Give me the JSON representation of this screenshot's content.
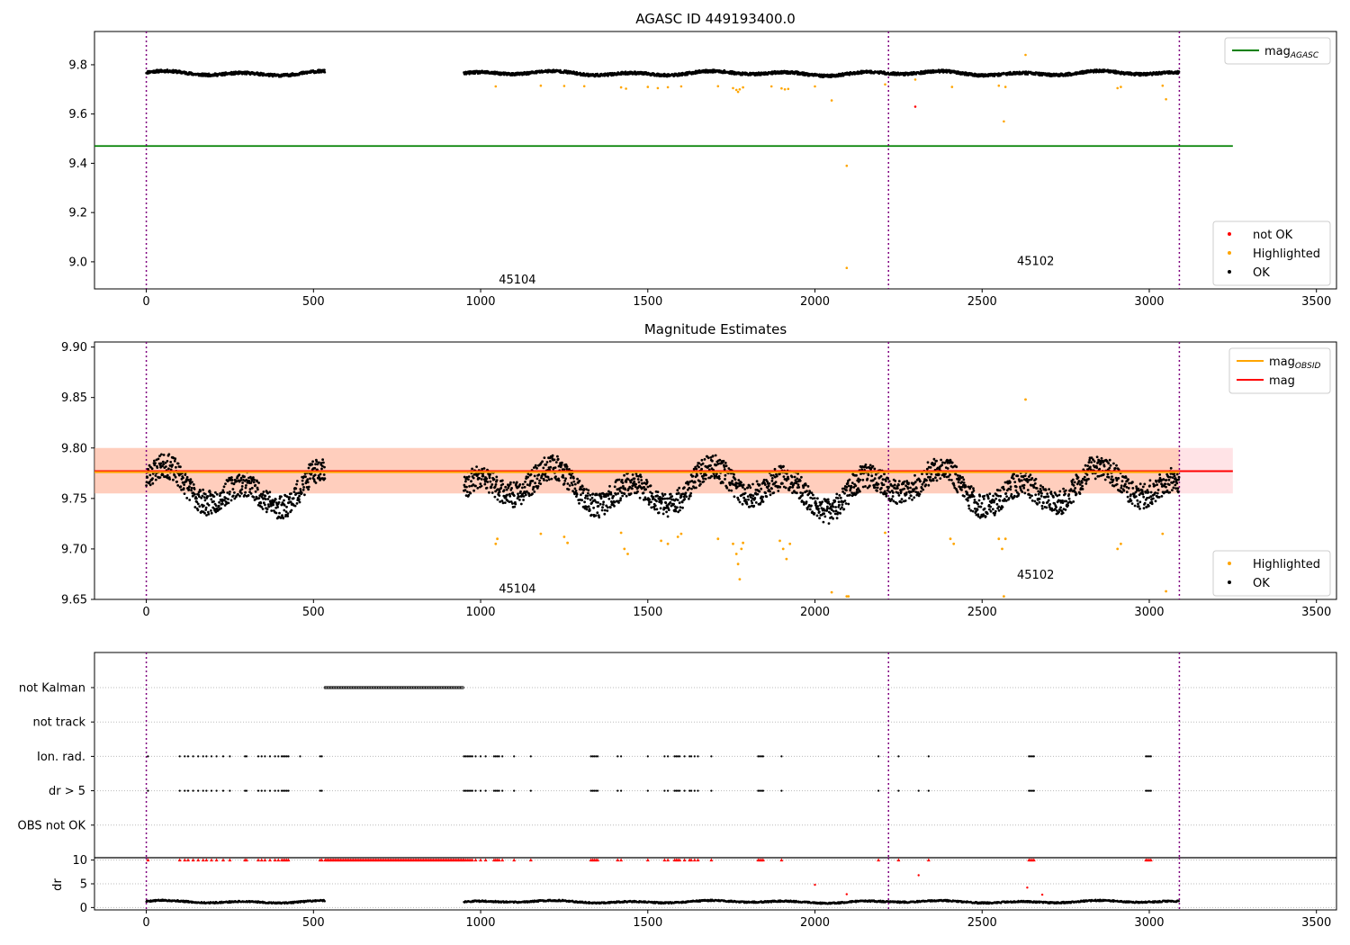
{
  "chart_data": [
    {
      "panel": "agasc",
      "type": "scatter",
      "title": "AGASC ID 449193400.0",
      "xlim": [
        -155,
        3560
      ],
      "ylim": [
        8.89,
        9.935
      ],
      "x_ticks": [
        0,
        500,
        1000,
        1500,
        2000,
        2500,
        3000,
        3500
      ],
      "y_ticks": [
        9.0,
        9.2,
        9.4,
        9.6,
        9.8
      ],
      "y_tick_labels": [
        "9.0",
        "9.2",
        "9.4",
        "9.6",
        "9.8"
      ],
      "obsid_boundaries": [
        0,
        2220,
        3090
      ],
      "obsid_labels": [
        {
          "text": "45104",
          "x": 1110,
          "y": 8.93
        },
        {
          "text": "45102",
          "x": 2660,
          "y": 9.005
        }
      ],
      "lines": [
        {
          "name": "mag",
          "subscript": "AGASC",
          "y": 9.47,
          "x_range": [
            -155,
            3250
          ],
          "color": "#008000"
        }
      ],
      "series": [
        {
          "name": "OK",
          "color": "#000000",
          "base": 9.765,
          "amp": 0.02,
          "segments": [
            [
              0,
              535
            ],
            [
              950,
              3090
            ]
          ],
          "n": 2600,
          "seed": 11
        },
        {
          "name": "Highlighted",
          "color": "#ffa500",
          "points": [
            [
              1045,
              9.712
            ],
            [
              1180,
              9.715
            ],
            [
              1250,
              9.714
            ],
            [
              1310,
              9.713
            ],
            [
              1420,
              9.708
            ],
            [
              1435,
              9.703
            ],
            [
              1500,
              9.71
            ],
            [
              1530,
              9.705
            ],
            [
              1560,
              9.709
            ],
            [
              1600,
              9.712
            ],
            [
              1710,
              9.713
            ],
            [
              1755,
              9.705
            ],
            [
              1765,
              9.698
            ],
            [
              1770,
              9.69
            ],
            [
              1775,
              9.7
            ],
            [
              1785,
              9.708
            ],
            [
              1870,
              9.712
            ],
            [
              1900,
              9.704
            ],
            [
              1910,
              9.7
            ],
            [
              1920,
              9.702
            ],
            [
              2000,
              9.712
            ],
            [
              2050,
              9.655
            ],
            [
              2095,
              9.39
            ],
            [
              2095,
              8.975
            ],
            [
              2210,
              9.72
            ],
            [
              2300,
              9.74
            ],
            [
              2410,
              9.71
            ],
            [
              2550,
              9.715
            ],
            [
              2565,
              9.57
            ],
            [
              2570,
              9.71
            ],
            [
              2630,
              9.84
            ],
            [
              2905,
              9.705
            ],
            [
              2915,
              9.71
            ],
            [
              3040,
              9.715
            ],
            [
              3050,
              9.66
            ]
          ]
        },
        {
          "name": "not OK",
          "color": "#ff0000",
          "points": [
            [
              2300,
              9.63
            ]
          ]
        }
      ],
      "legend_top": [
        {
          "label": "mag",
          "subscript": "AGASC",
          "color": "#008000"
        }
      ],
      "legend_bottom": [
        {
          "label": "not OK",
          "color": "#ff0000"
        },
        {
          "label": "Highlighted",
          "color": "#ffa500"
        },
        {
          "label": "OK",
          "color": "#000000"
        }
      ]
    },
    {
      "panel": "estimates",
      "type": "scatter",
      "title": "Magnitude Estimates",
      "xlim": [
        -155,
        3560
      ],
      "ylim": [
        9.65,
        9.905
      ],
      "x_ticks": [
        0,
        500,
        1000,
        1500,
        2000,
        2500,
        3000,
        3500
      ],
      "y_ticks": [
        9.65,
        9.7,
        9.75,
        9.8,
        9.85,
        9.9
      ],
      "y_tick_labels": [
        "9.65",
        "9.70",
        "9.75",
        "9.80",
        "9.85",
        "9.90"
      ],
      "obsid_boundaries": [
        0,
        2220,
        3090
      ],
      "obsid_labels": [
        {
          "text": "45104",
          "x": 1110,
          "y": 9.661
        },
        {
          "text": "45102",
          "x": 2660,
          "y": 9.675
        }
      ],
      "bands": [
        {
          "name": "mag band",
          "color": "#ffb0b8",
          "opacity": 0.35,
          "y0": 9.755,
          "y1": 9.8,
          "x_range": [
            -155,
            3250
          ]
        },
        {
          "name": "mag_OBSID band 45104",
          "color": "#ffa060",
          "opacity": 0.3,
          "y0": 9.755,
          "y1": 9.8,
          "x_range": [
            -155,
            2220
          ]
        },
        {
          "name": "mag_OBSID band 45102",
          "color": "#ffa060",
          "opacity": 0.3,
          "y0": 9.755,
          "y1": 9.8,
          "x_range": [
            2220,
            3090
          ]
        }
      ],
      "lines": [
        {
          "name": "mag",
          "y": 9.777,
          "x_range": [
            -155,
            3250
          ],
          "color": "#ff0000"
        },
        {
          "name": "mag",
          "subscript": "OBSID",
          "y": 9.776,
          "x_range": [
            -155,
            3090
          ],
          "color": "#ffa500"
        }
      ],
      "series": [
        {
          "name": "OK",
          "color": "#000000",
          "base": 9.76,
          "amp": 0.045,
          "segments": [
            [
              0,
              535
            ],
            [
              950,
              3090
            ]
          ],
          "n": 2600,
          "seed": 23
        },
        {
          "name": "Highlighted",
          "color": "#ffa500",
          "points": [
            [
              1045,
              9.705
            ],
            [
              1050,
              9.71
            ],
            [
              1180,
              9.715
            ],
            [
              1250,
              9.712
            ],
            [
              1260,
              9.706
            ],
            [
              1420,
              9.716
            ],
            [
              1430,
              9.7
            ],
            [
              1440,
              9.695
            ],
            [
              1540,
              9.708
            ],
            [
              1560,
              9.705
            ],
            [
              1590,
              9.712
            ],
            [
              1600,
              9.715
            ],
            [
              1710,
              9.71
            ],
            [
              1755,
              9.705
            ],
            [
              1765,
              9.695
            ],
            [
              1770,
              9.685
            ],
            [
              1775,
              9.67
            ],
            [
              1780,
              9.7
            ],
            [
              1785,
              9.706
            ],
            [
              1895,
              9.708
            ],
            [
              1905,
              9.7
            ],
            [
              1915,
              9.69
            ],
            [
              1925,
              9.705
            ],
            [
              2050,
              9.657
            ],
            [
              2095,
              9.653
            ],
            [
              2100,
              9.653
            ],
            [
              2210,
              9.716
            ],
            [
              2405,
              9.71
            ],
            [
              2415,
              9.705
            ],
            [
              2550,
              9.71
            ],
            [
              2560,
              9.7
            ],
            [
              2565,
              9.653
            ],
            [
              2570,
              9.71
            ],
            [
              2630,
              9.848
            ],
            [
              2905,
              9.7
            ],
            [
              2915,
              9.705
            ],
            [
              3040,
              9.715
            ],
            [
              3050,
              9.658
            ]
          ]
        }
      ],
      "legend_top": [
        {
          "label": "mag",
          "subscript": "OBSID",
          "color": "#ffa500"
        },
        {
          "label": "mag",
          "color": "#ff0000"
        }
      ],
      "legend_bottom": [
        {
          "label": "Highlighted",
          "color": "#ffa500"
        },
        {
          "label": "OK",
          "color": "#000000"
        }
      ]
    },
    {
      "panel": "flags",
      "type": "scatter",
      "xlim": [
        -155,
        3560
      ],
      "categories": [
        "not Kalman",
        "not track",
        "Ion. rad.",
        "dr > 5",
        "OBS not OK"
      ],
      "obsid_boundaries": [
        0,
        2220,
        3090
      ],
      "series": [
        {
          "name": "not Kalman",
          "color": "#000000",
          "ranges": [
            [
              535,
              950
            ]
          ]
        },
        {
          "name": "not track",
          "color": "#000000",
          "ranges": []
        },
        {
          "name": "Ion. rad.",
          "color": "#000000",
          "xs": [
            5,
            100,
            115,
            125,
            140,
            155,
            170,
            180,
            195,
            210,
            230,
            250,
            295,
            300,
            335,
            345,
            355,
            370,
            385,
            395,
            405,
            410,
            415,
            420,
            425,
            460,
            520,
            525,
            950,
            955,
            960,
            965,
            970,
            975,
            985,
            1000,
            1015,
            1040,
            1045,
            1050,
            1055,
            1065,
            1100,
            1150,
            1330,
            1335,
            1340,
            1345,
            1350,
            1410,
            1420,
            1500,
            1550,
            1560,
            1580,
            1585,
            1590,
            1595,
            1610,
            1625,
            1630,
            1640,
            1650,
            1690,
            1830,
            1835,
            1840,
            1845,
            1900,
            2190,
            2250,
            2340,
            2640,
            2645,
            2650,
            2655,
            2990,
            2995,
            3000,
            3005
          ]
        },
        {
          "name": "dr > 5",
          "color": "#000000",
          "xs": [
            5,
            100,
            115,
            125,
            140,
            155,
            170,
            180,
            195,
            210,
            230,
            250,
            295,
            300,
            335,
            345,
            355,
            370,
            385,
            395,
            405,
            410,
            415,
            420,
            425,
            520,
            525,
            950,
            955,
            960,
            965,
            970,
            975,
            985,
            1000,
            1015,
            1040,
            1045,
            1050,
            1055,
            1065,
            1100,
            1150,
            1330,
            1335,
            1340,
            1345,
            1350,
            1410,
            1420,
            1500,
            1550,
            1560,
            1580,
            1585,
            1590,
            1595,
            1610,
            1625,
            1630,
            1640,
            1650,
            1690,
            1830,
            1835,
            1840,
            1845,
            1900,
            2190,
            2250,
            2310,
            2340,
            2640,
            2645,
            2650,
            2655,
            2990,
            2995,
            3000,
            3005
          ]
        },
        {
          "name": "OBS not OK",
          "color": "#000000",
          "ranges": []
        }
      ]
    },
    {
      "panel": "dr",
      "type": "scatter",
      "xlim": [
        -155,
        3560
      ],
      "x_ticks": [
        0,
        500,
        1000,
        1500,
        2000,
        2500,
        3000,
        3500
      ],
      "ylim": [
        -0.5,
        10.5
      ],
      "y_ticks": [
        0,
        5,
        10
      ],
      "y_tick_labels": [
        "0",
        "5",
        "10"
      ],
      "ylabel": "dr",
      "obsid_boundaries": [
        0,
        2220,
        3090
      ],
      "series": [
        {
          "name": "dr",
          "color": "#000000",
          "base": 1.2,
          "amp": 0.6,
          "segments": [
            [
              0,
              535
            ],
            [
              950,
              3090
            ]
          ],
          "n": 1900,
          "seed": 5
        },
        {
          "name": "dr clipped",
          "color": "#ff0000",
          "clip": 10,
          "ranges": [
            [
              535,
              950
            ]
          ],
          "xs": [
            5,
            100,
            115,
            125,
            140,
            155,
            170,
            180,
            195,
            210,
            230,
            250,
            295,
            300,
            335,
            345,
            355,
            370,
            385,
            395,
            405,
            410,
            415,
            420,
            425,
            520,
            525,
            950,
            955,
            960,
            965,
            970,
            975,
            985,
            1000,
            1015,
            1040,
            1045,
            1050,
            1055,
            1065,
            1100,
            1150,
            1330,
            1335,
            1340,
            1345,
            1350,
            1410,
            1420,
            1500,
            1550,
            1560,
            1580,
            1585,
            1590,
            1595,
            1610,
            1625,
            1630,
            1640,
            1650,
            1690,
            1830,
            1835,
            1840,
            1845,
            1900,
            2190,
            2250,
            2340,
            2640,
            2645,
            2650,
            2655,
            2990,
            2995,
            3000,
            3005
          ]
        },
        {
          "name": "dr mid",
          "color": "#ff0000",
          "points": [
            [
              2000,
              4.8
            ],
            [
              2095,
              2.8
            ],
            [
              2310,
              6.8
            ],
            [
              2635,
              4.2
            ],
            [
              2680,
              2.7
            ]
          ]
        }
      ]
    }
  ]
}
